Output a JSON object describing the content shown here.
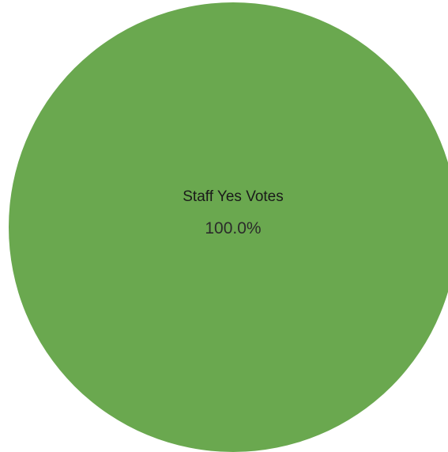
{
  "chart_data": {
    "type": "pie",
    "title": "",
    "categories": [
      "Staff Yes Votes"
    ],
    "values": [
      100.0
    ],
    "value_labels": [
      "100.0%"
    ],
    "colors": [
      "#6aa84f"
    ],
    "legend": "none"
  }
}
